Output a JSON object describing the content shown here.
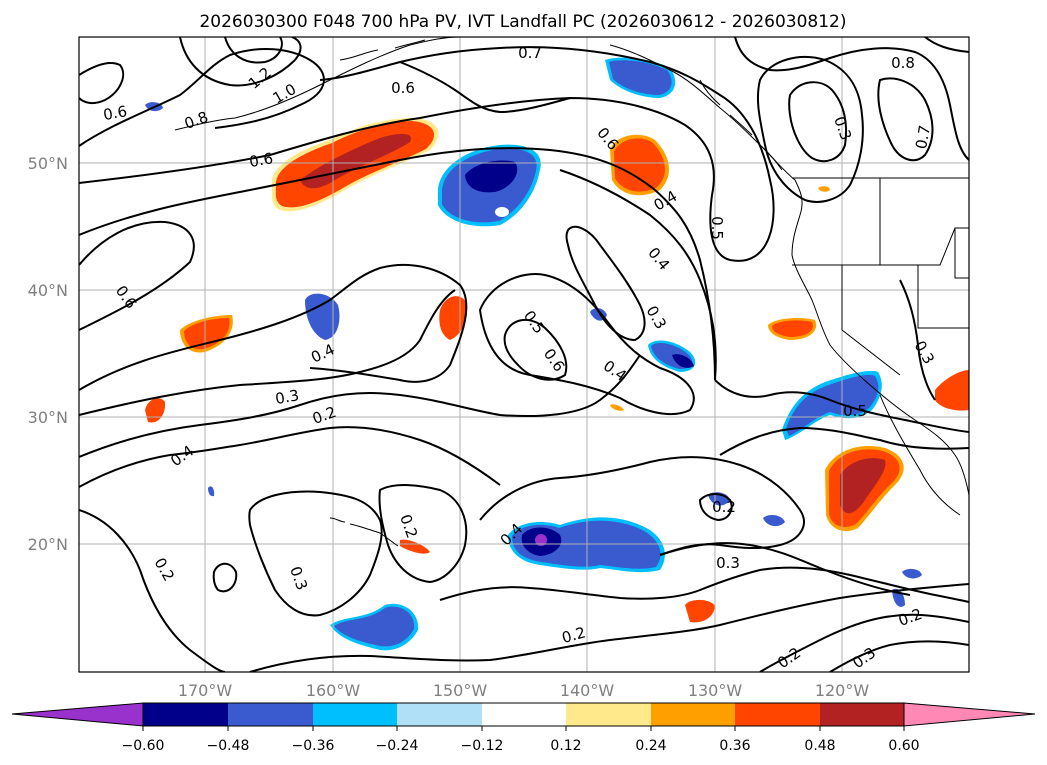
{
  "figure": {
    "title": "2026030300 F048 700 hPa PV, IVT Landfall PC (2026030612 - 2026030812)"
  },
  "map": {
    "lon_ticks": [
      "170°W",
      "160°W",
      "150°W",
      "140°W",
      "130°W",
      "120°W"
    ],
    "lat_ticks": [
      "50°N",
      "40°N",
      "30°N",
      "20°N"
    ],
    "contour_labels": [
      "0.7",
      "0.8",
      "1.2",
      "1.0",
      "0.6",
      "0.6",
      "0.8",
      "0.6",
      "0.6",
      "0.3",
      "0.7",
      "0.6",
      "0.4",
      "0.5",
      "0.4",
      "0.3",
      "0.5",
      "0.6",
      "0.4",
      "0.4",
      "0.3",
      "0.2",
      "0.4",
      "0.3",
      "0.5",
      "0.2",
      "0.4",
      "0.2",
      "0.3",
      "0.2",
      "0.3",
      "0.2",
      "0.2",
      "0.3",
      "0.2"
    ]
  },
  "colorbar": {
    "colors": [
      "#9932cc",
      "#00008b",
      "#3a5bd0",
      "#00bfff",
      "#b0e0f8",
      "#ffffff",
      "#ffe98a",
      "#ffa000",
      "#ff4500",
      "#b22222",
      "#ff88b4"
    ],
    "ticks": [
      "−0.60",
      "−0.48",
      "−0.36",
      "−0.24",
      "−0.12",
      "0.12",
      "0.24",
      "0.36",
      "0.48",
      "0.60"
    ]
  }
}
